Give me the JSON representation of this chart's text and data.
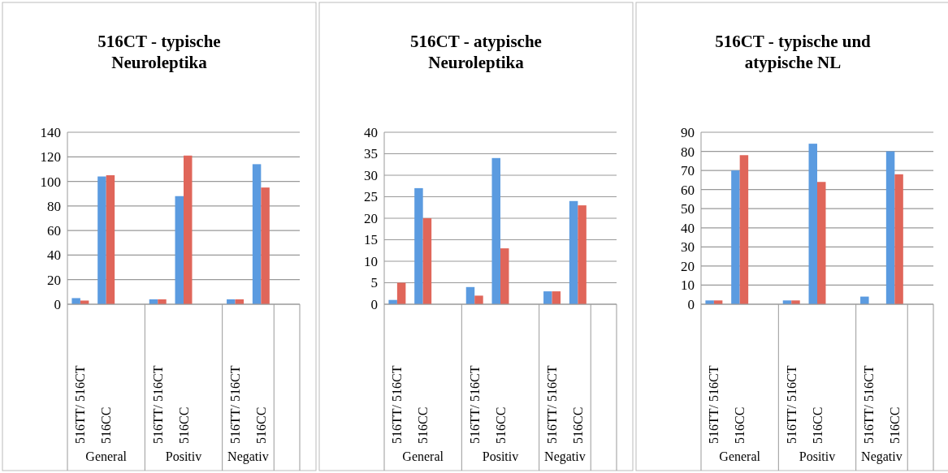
{
  "chart_data": [
    {
      "type": "bar",
      "title": "516CT - typische Neuroleptika",
      "categories": [
        "516TT/ 516CT",
        "516CC",
        null,
        "516TT/ 516CT",
        "516CC",
        null,
        "516TT/ 516CT",
        "516CC",
        null
      ],
      "series": [
        {
          "color": "#5b9be0",
          "values": [
            5,
            104,
            null,
            4,
            88,
            null,
            4,
            114,
            null
          ]
        },
        {
          "color": "#e0665a",
          "values": [
            3,
            105,
            null,
            4,
            121,
            null,
            4,
            95,
            null
          ]
        }
      ],
      "ylim": [
        0,
        140
      ],
      "yticks": [
        0,
        20,
        40,
        60,
        80,
        100,
        120,
        140
      ],
      "grid": "y",
      "annotations": [
        "General",
        "Positiv",
        "Negativ"
      ]
    },
    {
      "type": "bar",
      "title": "516CT - atypische Neuroleptika",
      "categories": [
        "516TT/ 516CT",
        "516CC",
        null,
        "516TT/ 516CT",
        "516CC",
        null,
        "516TT/ 516CT",
        "516CC",
        null
      ],
      "series": [
        {
          "color": "#5b9be0",
          "values": [
            1,
            27,
            null,
            4,
            34,
            null,
            3,
            24,
            null
          ]
        },
        {
          "color": "#e0665a",
          "values": [
            5,
            20,
            null,
            2,
            13,
            null,
            3,
            23,
            null
          ]
        }
      ],
      "ylim": [
        0,
        40
      ],
      "yticks": [
        0,
        5,
        10,
        15,
        20,
        25,
        30,
        35,
        40
      ],
      "grid": "y",
      "annotations": [
        "General",
        "Positiv",
        "Negativ"
      ]
    },
    {
      "type": "bar",
      "title": "516CT - typische und atypische NL",
      "categories": [
        "516TT/ 516CT",
        "516CC",
        null,
        "516TT/ 516CT",
        "516CC",
        null,
        "516TT/ 516CT",
        "516CC",
        null
      ],
      "series": [
        {
          "color": "#5b9be0",
          "values": [
            2,
            70,
            null,
            2,
            84,
            null,
            4,
            80,
            null
          ]
        },
        {
          "color": "#e0665a",
          "values": [
            2,
            78,
            null,
            2,
            64,
            null,
            0,
            68,
            null
          ]
        }
      ],
      "ylim": [
        0,
        90
      ],
      "yticks": [
        0,
        10,
        20,
        30,
        40,
        50,
        60,
        70,
        80,
        90
      ],
      "grid": "y",
      "annotations": [
        "General",
        "Positiv",
        "Negativ"
      ]
    }
  ]
}
